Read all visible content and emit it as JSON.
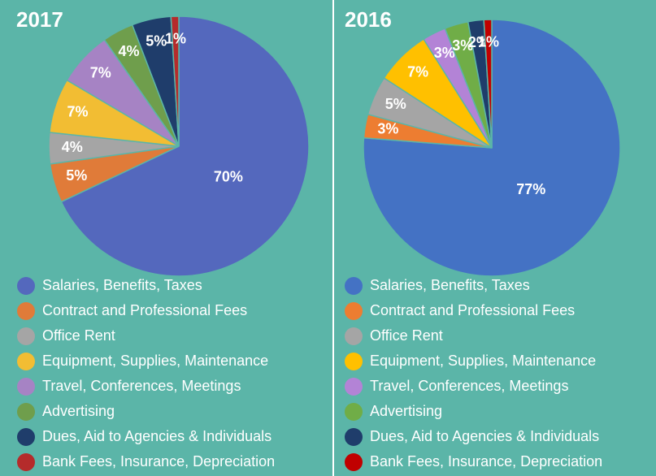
{
  "chart_data": [
    {
      "type": "pie",
      "title": "2017",
      "categories": [
        "Salaries, Benefits, Taxes",
        "Contract and Professional Fees",
        "Office Rent",
        "Equipment, Supplies, Maintenance",
        "Travel, Conferences, Meetings",
        "Advertising",
        "Dues, Aid to Agencies & Individuals",
        "Bank Fees, Insurance, Depreciation"
      ],
      "values": [
        70,
        5,
        4,
        7,
        7,
        4,
        5,
        1
      ],
      "value_labels": [
        "70%",
        "5%",
        "4%",
        "7%",
        "7%",
        "4%",
        "5%",
        "1%"
      ],
      "colors": [
        "#5468bd",
        "#e07b39",
        "#a5a5a5",
        "#f2bd33",
        "#a683c4",
        "#6f9e4c",
        "#1f3d6b",
        "#b52b2b"
      ]
    },
    {
      "type": "pie",
      "title": "2016",
      "categories": [
        "Salaries, Benefits, Taxes",
        "Contract and Professional Fees",
        "Office Rent",
        "Equipment, Supplies, Maintenance",
        "Travel, Conferences, Meetings",
        "Advertising",
        "Dues, Aid to Agencies & Individuals",
        "Bank Fees, Insurance, Depreciation"
      ],
      "values": [
        77,
        3,
        5,
        7,
        3,
        3,
        2,
        1
      ],
      "value_labels": [
        "77%",
        "3%",
        "5%",
        "7%",
        "3%",
        "3%",
        "2%",
        "1%"
      ],
      "colors": [
        "#4472c4",
        "#ed7d31",
        "#a5a5a5",
        "#ffc000",
        "#b383d6",
        "#70ad47",
        "#1f3d6b",
        "#c00000"
      ]
    }
  ]
}
